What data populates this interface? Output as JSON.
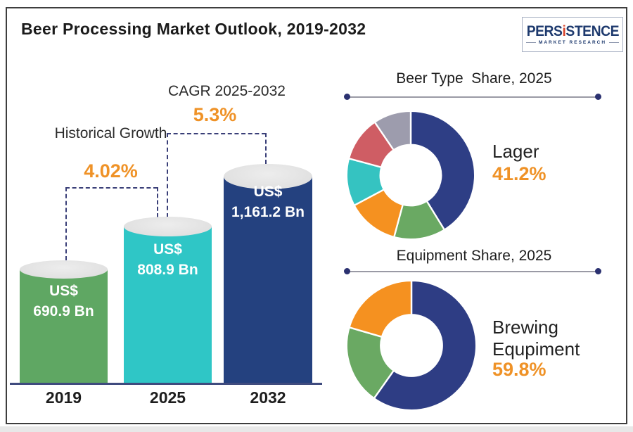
{
  "header": {
    "title": "Beer Processing Market Outlook, 2019-2032"
  },
  "logo": {
    "part1": "PERS",
    "accent": "i",
    "part2": "STENCE",
    "tagline": "MARKET RESEARCH"
  },
  "colors": {
    "accent_orange": "#ef9227",
    "bar_green": "#5fa763",
    "bar_teal": "#2fc6c6",
    "bar_navy": "#24417f",
    "donut_navy": "#2e3e85",
    "dashed_line": "#3a3f78",
    "baseline": "#3f4b7e"
  },
  "chart_data": [
    {
      "type": "bar",
      "title": "Beer Processing Market Outlook, 2019-2032",
      "categories": [
        "2019",
        "2025",
        "2032"
      ],
      "values": [
        690.9,
        808.9,
        1161.2
      ],
      "unit": "US$ Bn",
      "bars": [
        {
          "year": "2019",
          "line1": "US$",
          "line2": "690.9 Bn",
          "color": "#5fa763"
        },
        {
          "year": "2025",
          "line1": "US$",
          "line2": "808.9 Bn",
          "color": "#2fc6c6"
        },
        {
          "year": "2032",
          "line1": "US$",
          "line2": "1,161.2 Bn",
          "color": "#24417f"
        }
      ],
      "annotations": [
        {
          "label": "Historical Growth",
          "value": "4.02%"
        },
        {
          "label": "CAGR 2025-2032",
          "value": "5.3%"
        }
      ]
    },
    {
      "type": "donut",
      "title": "Beer Type  Share, 2025",
      "segments": [
        {
          "name": "Lager",
          "value": 41.2,
          "color": "#2e3e85"
        },
        {
          "name": "",
          "value": 13.0,
          "color": "#6aa963"
        },
        {
          "name": "",
          "value": 13.0,
          "color": "#f59120"
        },
        {
          "name": "",
          "value": 12.0,
          "color": "#35c3c1"
        },
        {
          "name": "",
          "value": 11.3,
          "color": "#cf5d64"
        },
        {
          "name": "",
          "value": 9.5,
          "color": "#9d9cad"
        }
      ],
      "callout": {
        "label": "Lager",
        "value": "41.2%"
      }
    },
    {
      "type": "donut",
      "title": "Equipment Share, 2025",
      "segments": [
        {
          "name": "Brewing Equpiment",
          "value": 59.8,
          "color": "#2e3d84"
        },
        {
          "name": "",
          "value": 19.7,
          "color": "#6aa963"
        },
        {
          "name": "",
          "value": 20.5,
          "color": "#f59120"
        }
      ],
      "callout": {
        "label": "Brewing Equpiment",
        "value": "59.8%"
      }
    }
  ]
}
